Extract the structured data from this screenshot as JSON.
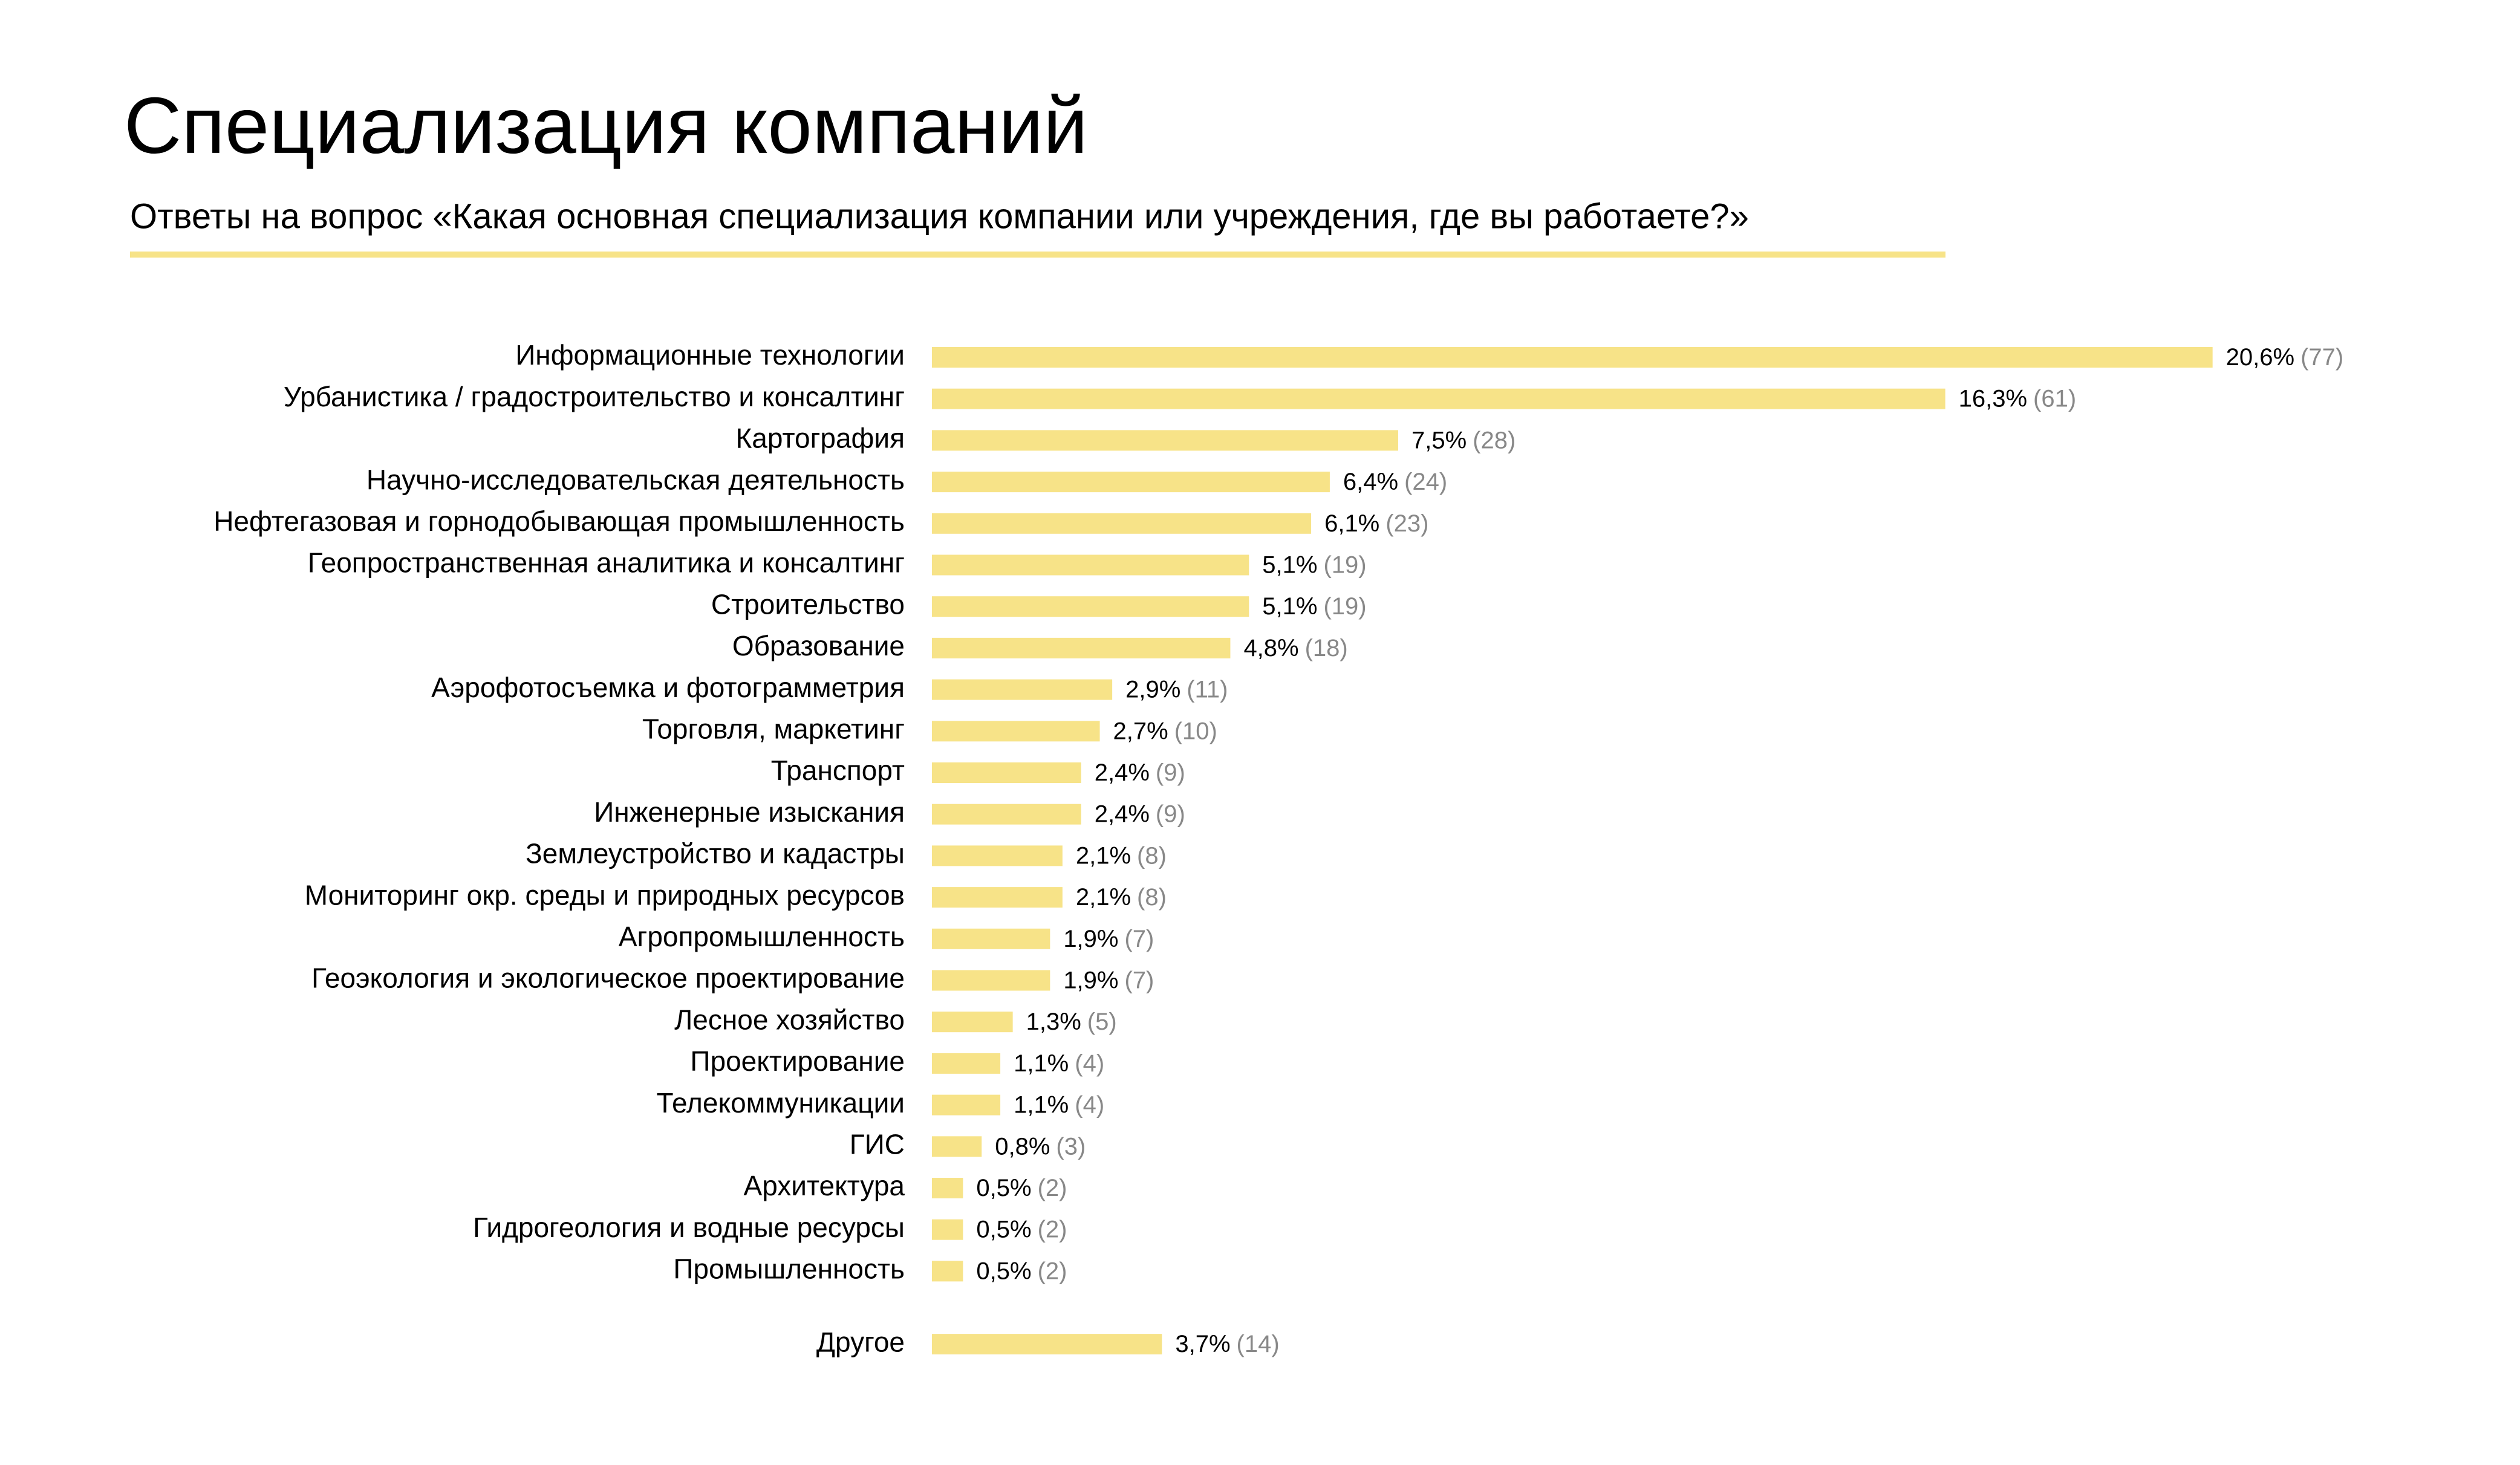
{
  "chart_data": {
    "type": "bar",
    "orientation": "horizontal",
    "title": "Специализация компаний",
    "subtitle": "Ответы на вопрос «Какая основная специализация компании или учреждения, где вы работаете?»",
    "categories": [
      "Информационные технологии",
      "Урбанистика / градостроительство и консалтинг",
      "Картография",
      "Научно-исследовательская деятельность",
      "Нефтегазовая и горнодобывающая промышленность",
      "Геопространственная аналитика и консалтинг",
      "Строительство",
      "Образование",
      "Аэрофотосъемка и фотограмметрия",
      "Торговля, маркетинг",
      "Транспорт",
      "Инженерные изыскания",
      "Землеустройство и кадастры",
      "Мониторинг окр. среды и природных ресурсов",
      "Агропромышленность",
      "Геоэкология и экологическое проектирование",
      "Лесное хозяйство",
      "Проектирование",
      "Телекоммуникации",
      "ГИС",
      "Архитектура",
      "Гидрогеология и водные ресурсы",
      "Промышленность",
      "Другое"
    ],
    "values": [
      20.6,
      16.3,
      7.5,
      6.4,
      6.1,
      5.1,
      5.1,
      4.8,
      2.9,
      2.7,
      2.4,
      2.4,
      2.1,
      2.1,
      1.9,
      1.9,
      1.3,
      1.1,
      1.1,
      0.8,
      0.5,
      0.5,
      0.5,
      3.7
    ],
    "value_labels": [
      "20,6%",
      "16,3%",
      "7,5%",
      "6,4%",
      "6,1%",
      "5,1%",
      "5,1%",
      "4,8%",
      "2,9%",
      "2,7%",
      "2,4%",
      "2,4%",
      "2,1%",
      "2,1%",
      "1,9%",
      "1,9%",
      "1,3%",
      "1,1%",
      "1,1%",
      "0,8%",
      "0,5%",
      "0,5%",
      "0,5%",
      "3,7%"
    ],
    "counts": [
      77,
      61,
      28,
      24,
      23,
      19,
      19,
      18,
      11,
      10,
      9,
      9,
      8,
      8,
      7,
      7,
      5,
      4,
      4,
      3,
      2,
      2,
      2,
      14
    ],
    "count_labels": [
      "(77)",
      "(61)",
      "(28)",
      "(24)",
      "(23)",
      "(19)",
      "(19)",
      "(18)",
      "(11)",
      "(10)",
      "(9)",
      "(9)",
      "(8)",
      "(8)",
      "(7)",
      "(7)",
      "(5)",
      "(4)",
      "(4)",
      "(3)",
      "(2)",
      "(2)",
      "(2)",
      "(14)"
    ],
    "color": "#f7e388",
    "count_color": "#888888",
    "accent_color": "#f7e388"
  }
}
